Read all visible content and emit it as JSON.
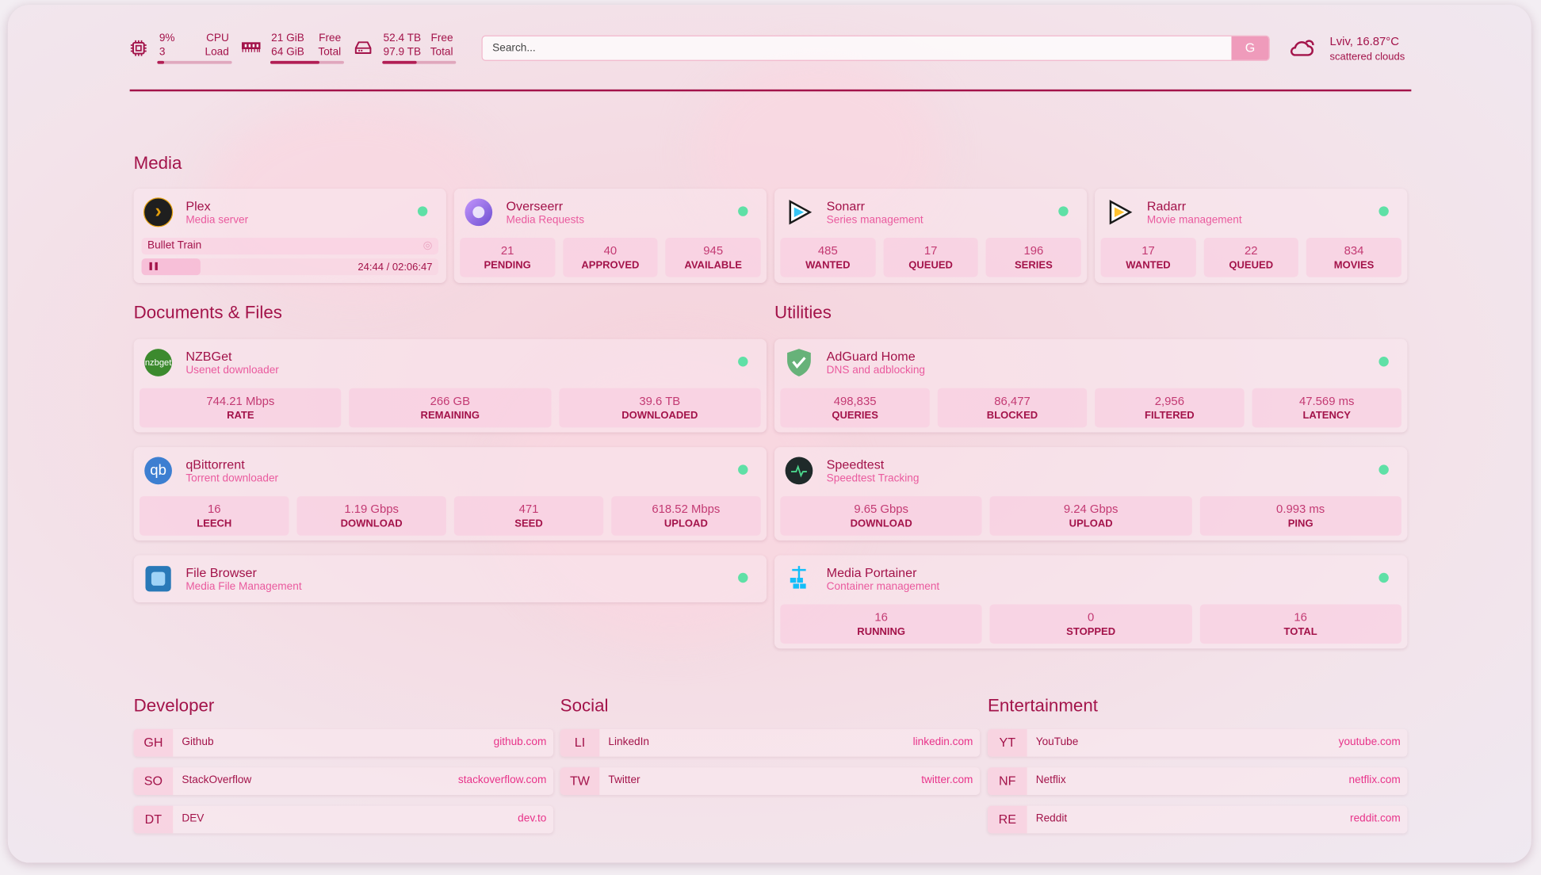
{
  "header": {
    "cpu": {
      "icon": "cpu-icon",
      "value": "9%",
      "value2": "3",
      "label": "CPU",
      "label2": "Load",
      "fill": 0.09
    },
    "memory": {
      "icon": "memory-icon",
      "value": "21 GiB",
      "value2": "64 GiB",
      "label": "Free",
      "label2": "Total",
      "fill": 0.67
    },
    "disk": {
      "icon": "disk-icon",
      "value": "52.4 TB",
      "value2": "97.9 TB",
      "label": "Free",
      "label2": "Total",
      "fill": 0.46
    },
    "search": {
      "placeholder": "Search...",
      "button": "G"
    },
    "weather": {
      "icon": "cloud-icon",
      "location": "Lviv, 16.87°C",
      "condition": "scattered clouds"
    }
  },
  "colors": {
    "accent": "#a3134a",
    "subtitle": "#e8559a",
    "status_ok": "#5fe0a6"
  },
  "sections": {
    "media": "Media",
    "documents": "Documents & Files",
    "utilities": "Utilities",
    "developer": "Developer",
    "social": "Social",
    "entertainment": "Entertainment"
  },
  "media": [
    {
      "name": "Plex",
      "desc": "Media server",
      "icon": "plex-icon",
      "now_playing": {
        "title": "Bullet Train",
        "progress": "24:44",
        "duration": "02:06:47",
        "state": "paused"
      }
    },
    {
      "name": "Overseerr",
      "desc": "Media Requests",
      "icon": "overseerr-icon",
      "stats": [
        {
          "v": "21",
          "l": "PENDING"
        },
        {
          "v": "40",
          "l": "APPROVED"
        },
        {
          "v": "945",
          "l": "AVAILABLE"
        }
      ]
    },
    {
      "name": "Sonarr",
      "desc": "Series management",
      "icon": "sonarr-icon",
      "stats": [
        {
          "v": "485",
          "l": "WANTED"
        },
        {
          "v": "17",
          "l": "QUEUED"
        },
        {
          "v": "196",
          "l": "SERIES"
        }
      ]
    },
    {
      "name": "Radarr",
      "desc": "Movie management",
      "icon": "radarr-icon",
      "stats": [
        {
          "v": "17",
          "l": "WANTED"
        },
        {
          "v": "22",
          "l": "QUEUED"
        },
        {
          "v": "834",
          "l": "MOVIES"
        }
      ]
    }
  ],
  "documents": [
    {
      "name": "NZBGet",
      "desc": "Usenet downloader",
      "icon": "nzbget-icon",
      "stats": [
        {
          "v": "744.21 Mbps",
          "l": "RATE"
        },
        {
          "v": "266 GB",
          "l": "REMAINING"
        },
        {
          "v": "39.6 TB",
          "l": "DOWNLOADED"
        }
      ]
    },
    {
      "name": "qBittorrent",
      "desc": "Torrent downloader",
      "icon": "qbittorrent-icon",
      "stats": [
        {
          "v": "16",
          "l": "LEECH"
        },
        {
          "v": "1.19 Gbps",
          "l": "DOWNLOAD"
        },
        {
          "v": "471",
          "l": "SEED"
        },
        {
          "v": "618.52 Mbps",
          "l": "UPLOAD"
        }
      ]
    },
    {
      "name": "File Browser",
      "desc": "Media File Management",
      "icon": "filebrowser-icon",
      "stats": []
    }
  ],
  "utilities": [
    {
      "name": "AdGuard Home",
      "desc": "DNS and adblocking",
      "icon": "adguard-icon",
      "stats": [
        {
          "v": "498,835",
          "l": "QUERIES"
        },
        {
          "v": "86,477",
          "l": "BLOCKED"
        },
        {
          "v": "2,956",
          "l": "FILTERED"
        },
        {
          "v": "47.569 ms",
          "l": "LATENCY"
        }
      ]
    },
    {
      "name": "Speedtest",
      "desc": "Speedtest Tracking",
      "icon": "speedtest-icon",
      "stats": [
        {
          "v": "9.65 Gbps",
          "l": "DOWNLOAD"
        },
        {
          "v": "9.24 Gbps",
          "l": "UPLOAD"
        },
        {
          "v": "0.993 ms",
          "l": "PING"
        }
      ]
    },
    {
      "name": "Media Portainer",
      "desc": "Container management",
      "icon": "portainer-icon",
      "stats": [
        {
          "v": "16",
          "l": "RUNNING"
        },
        {
          "v": "0",
          "l": "STOPPED"
        },
        {
          "v": "16",
          "l": "TOTAL"
        }
      ]
    }
  ],
  "bookmarks": {
    "developer": [
      {
        "abbr": "GH",
        "name": "Github",
        "url": "github.com"
      },
      {
        "abbr": "SO",
        "name": "StackOverflow",
        "url": "stackoverflow.com"
      },
      {
        "abbr": "DT",
        "name": "DEV",
        "url": "dev.to"
      }
    ],
    "social": [
      {
        "abbr": "LI",
        "name": "LinkedIn",
        "url": "linkedin.com"
      },
      {
        "abbr": "TW",
        "name": "Twitter",
        "url": "twitter.com"
      }
    ],
    "entertainment": [
      {
        "abbr": "YT",
        "name": "YouTube",
        "url": "youtube.com"
      },
      {
        "abbr": "NF",
        "name": "Netflix",
        "url": "netflix.com"
      },
      {
        "abbr": "RE",
        "name": "Reddit",
        "url": "reddit.com"
      }
    ]
  }
}
